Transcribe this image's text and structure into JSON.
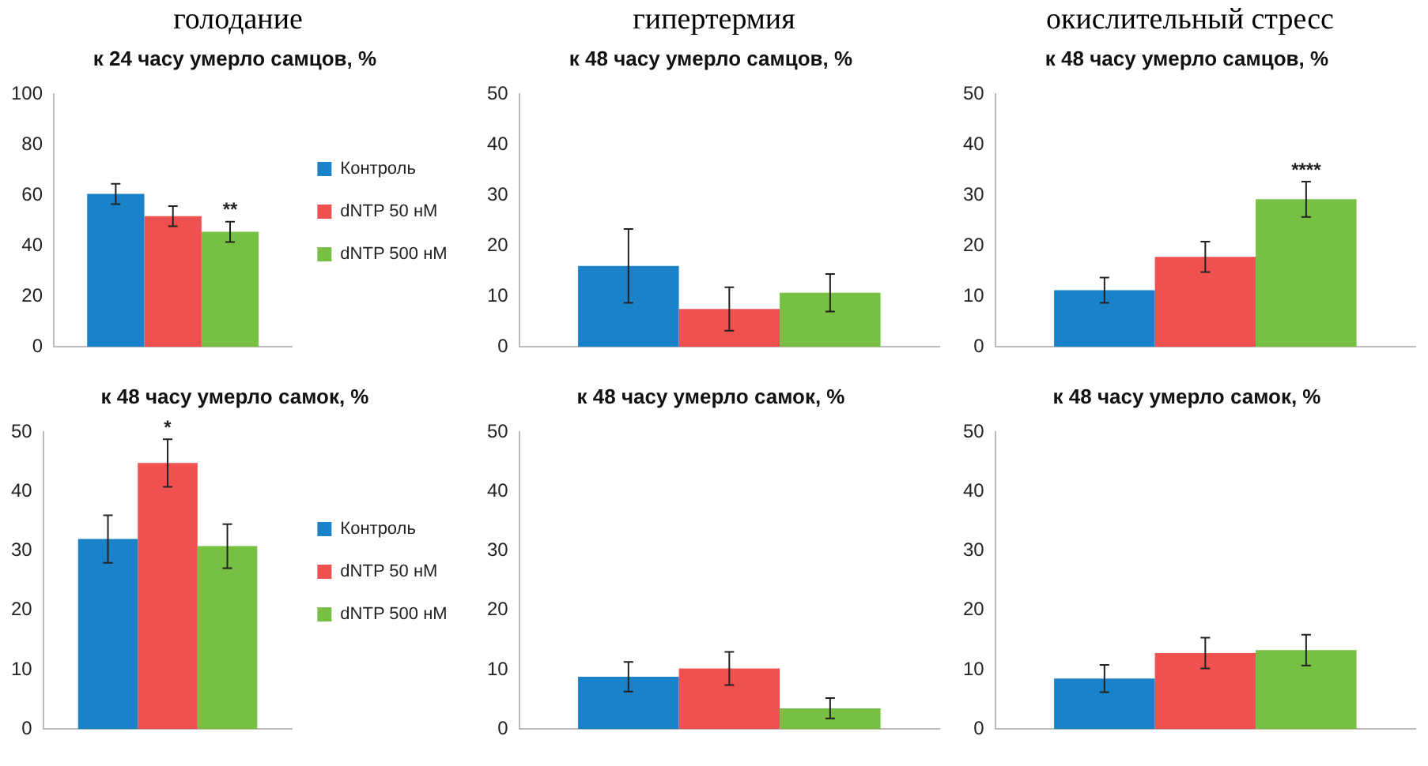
{
  "chart_data": [
    {
      "type": "bar",
      "subtitle": "голодание",
      "title": "к 24 часу умерло самцов, %",
      "categories": [
        null
      ],
      "ylim": [
        0,
        100
      ],
      "yticks": [
        0,
        20,
        40,
        60,
        80,
        100
      ],
      "legend": "right",
      "series": [
        {
          "name": "Контроль",
          "color": "#1a82c8",
          "values": [
            60.5
          ],
          "errors": [
            4
          ]
        },
        {
          "name": "dNTP 50 нМ",
          "color": "#ef5050",
          "values": [
            51.7
          ],
          "errors": [
            4
          ]
        },
        {
          "name": "dNTP 500 нМ",
          "color": "#77c043",
          "values": [
            45.5
          ],
          "errors": [
            4
          ],
          "value_labels": [
            "**"
          ]
        }
      ]
    },
    {
      "type": "bar",
      "subtitle": "гипертермия",
      "title": "к 48 часу умерло самцов, %",
      "categories": [
        null
      ],
      "ylim": [
        0,
        50
      ],
      "yticks": [
        0,
        10,
        20,
        30,
        40,
        50
      ],
      "series": [
        {
          "color": "#1a82c8",
          "values": [
            16
          ],
          "errors": [
            7.3
          ]
        },
        {
          "color": "#ef5050",
          "values": [
            7.5
          ],
          "errors": [
            4.3
          ]
        },
        {
          "color": "#77c043",
          "values": [
            10.7
          ],
          "errors": [
            3.7
          ]
        }
      ]
    },
    {
      "type": "bar",
      "subtitle": "окислительный стресс",
      "title": "к 48 часу умерло самцов, %",
      "categories": [
        null
      ],
      "ylim": [
        0,
        50
      ],
      "yticks": [
        0,
        10,
        20,
        30,
        40,
        50
      ],
      "series": [
        {
          "color": "#1a82c8",
          "values": [
            11.2
          ],
          "errors": [
            2.5
          ]
        },
        {
          "color": "#ef5050",
          "values": [
            17.8
          ],
          "errors": [
            3
          ]
        },
        {
          "color": "#77c043",
          "values": [
            29.2
          ],
          "errors": [
            3.5
          ],
          "value_labels": [
            "****"
          ]
        }
      ]
    },
    {
      "type": "bar",
      "title": "к 48 часу умерло самок, %",
      "categories": [
        null
      ],
      "ylim": [
        0,
        50
      ],
      "yticks": [
        0,
        10,
        20,
        30,
        40,
        50
      ],
      "legend": "right",
      "series": [
        {
          "name": "Контроль",
          "color": "#1a82c8",
          "values": [
            32
          ],
          "errors": [
            4
          ]
        },
        {
          "name": "dNTP 50 нМ",
          "color": "#ef5050",
          "values": [
            44.8
          ],
          "errors": [
            4
          ],
          "value_labels": [
            "*"
          ]
        },
        {
          "name": "dNTP 500 нМ",
          "color": "#77c043",
          "values": [
            30.8
          ],
          "errors": [
            3.7
          ]
        }
      ]
    },
    {
      "type": "bar",
      "title": "к 48 часу умерло самок, %",
      "categories": [
        null
      ],
      "ylim": [
        0,
        50
      ],
      "yticks": [
        0,
        10,
        20,
        30,
        40,
        50
      ],
      "series": [
        {
          "color": "#1a82c8",
          "values": [
            8.8
          ],
          "errors": [
            2.5
          ]
        },
        {
          "color": "#ef5050",
          "values": [
            10.2
          ],
          "errors": [
            2.8
          ]
        },
        {
          "color": "#77c043",
          "values": [
            3.5
          ],
          "errors": [
            1.7
          ]
        }
      ]
    },
    {
      "type": "bar",
      "title": "к 48 часу умерло самок, %",
      "categories": [
        null
      ],
      "ylim": [
        0,
        50
      ],
      "yticks": [
        0,
        10,
        20,
        30,
        40,
        50
      ],
      "series": [
        {
          "color": "#1a82c8",
          "values": [
            8.5
          ],
          "errors": [
            2.3
          ]
        },
        {
          "color": "#ef5050",
          "values": [
            12.8
          ],
          "errors": [
            2.6
          ]
        },
        {
          "color": "#77c043",
          "values": [
            13.3
          ],
          "errors": [
            2.6
          ]
        }
      ]
    }
  ]
}
